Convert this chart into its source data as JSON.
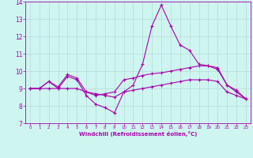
{
  "xlabel": "Windchill (Refroidissement éolien,°C)",
  "bg_color": "#cef5f0",
  "grid_color": "#b8dbd8",
  "line_color": "#aa00aa",
  "xlim": [
    -0.5,
    23.5
  ],
  "ylim": [
    7,
    14
  ],
  "xticks": [
    0,
    1,
    2,
    3,
    4,
    5,
    6,
    7,
    8,
    9,
    10,
    11,
    12,
    13,
    14,
    15,
    16,
    17,
    18,
    19,
    20,
    21,
    22,
    23
  ],
  "yticks": [
    7,
    8,
    9,
    10,
    11,
    12,
    13,
    14
  ],
  "line1_x": [
    0,
    1,
    2,
    3,
    4,
    5,
    6,
    7,
    8,
    9,
    10,
    11,
    12,
    13,
    14,
    15,
    16,
    17,
    18,
    19,
    20,
    21,
    22,
    23
  ],
  "line1_y": [
    9.0,
    9.0,
    9.4,
    9.0,
    9.7,
    9.5,
    8.6,
    8.1,
    7.9,
    7.6,
    8.8,
    9.2,
    10.4,
    12.6,
    13.8,
    12.6,
    11.5,
    11.2,
    10.4,
    10.3,
    10.1,
    9.2,
    8.8,
    8.4
  ],
  "line2_x": [
    0,
    1,
    2,
    3,
    4,
    5,
    6,
    7,
    8,
    9,
    10,
    11,
    12,
    13,
    14,
    15,
    16,
    17,
    18,
    19,
    20,
    21,
    22,
    23
  ],
  "line2_y": [
    9.0,
    9.0,
    9.4,
    9.1,
    9.8,
    9.6,
    8.8,
    8.6,
    8.7,
    8.8,
    9.5,
    9.6,
    9.75,
    9.85,
    9.9,
    10.0,
    10.1,
    10.2,
    10.3,
    10.3,
    10.2,
    9.2,
    8.9,
    8.4
  ],
  "line3_x": [
    0,
    1,
    2,
    3,
    4,
    5,
    6,
    7,
    8,
    9,
    10,
    11,
    12,
    13,
    14,
    15,
    16,
    17,
    18,
    19,
    20,
    21,
    22,
    23
  ],
  "line3_y": [
    9.0,
    9.0,
    9.0,
    9.0,
    9.0,
    9.0,
    8.8,
    8.7,
    8.6,
    8.5,
    8.8,
    8.9,
    9.0,
    9.1,
    9.2,
    9.3,
    9.4,
    9.5,
    9.5,
    9.5,
    9.4,
    8.8,
    8.6,
    8.4
  ]
}
